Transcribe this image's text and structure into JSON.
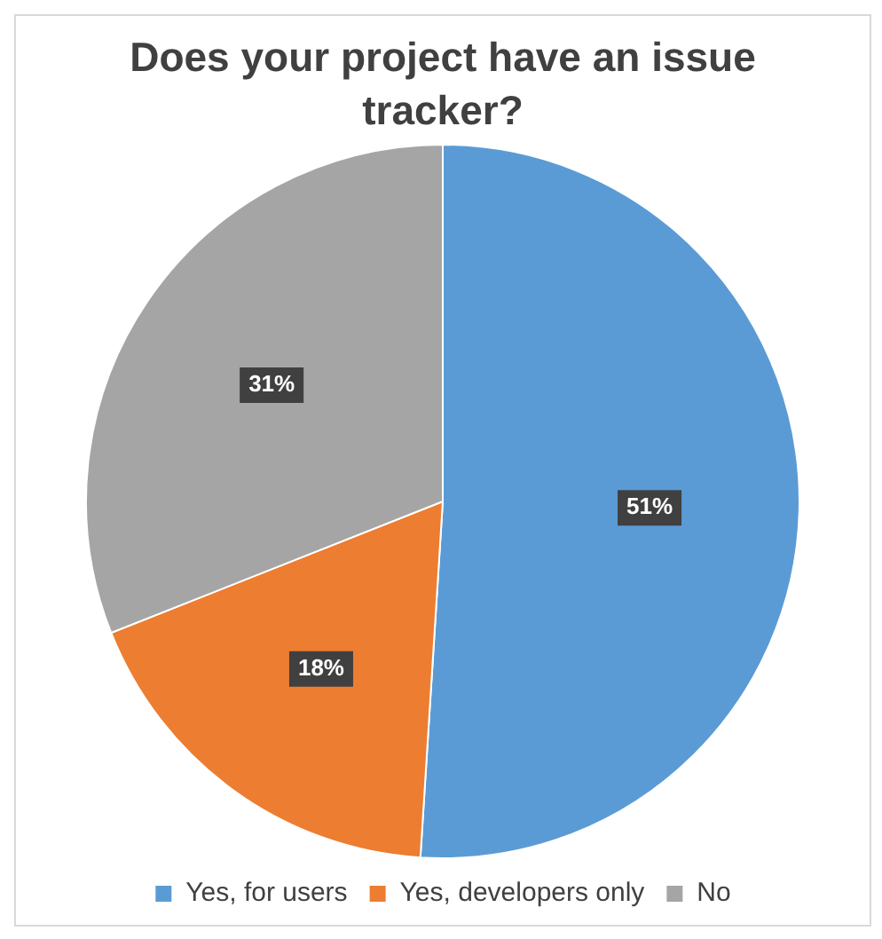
{
  "chart_data": {
    "type": "pie",
    "title": "Does your project have an issue tracker?",
    "categories": [
      "Yes, for users",
      "Yes, developers only",
      "No"
    ],
    "values": [
      51,
      18,
      31
    ],
    "value_labels": [
      "51%",
      "18%",
      "31%"
    ],
    "colors": [
      "#5b9bd5",
      "#ed7d31",
      "#a5a5a5"
    ],
    "legend": "bottom"
  }
}
